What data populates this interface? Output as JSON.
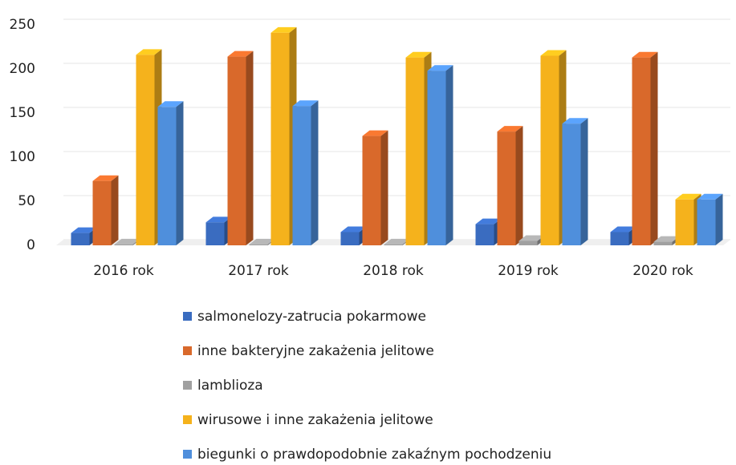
{
  "chart_data": {
    "type": "bar3d",
    "categories": [
      "2016 rok",
      "2017 rok",
      "2018 rok",
      "2019 rok",
      "2020 rok"
    ],
    "series": [
      {
        "name": "salmonelozy-zatrucia pokarmowe",
        "color": "#3a6cc0",
        "values": [
          14,
          26,
          15,
          24,
          15
        ]
      },
      {
        "name": "inne bakteryjne zakażenia jelitowe",
        "color": "#d9692b",
        "values": [
          73,
          214,
          124,
          129,
          213
        ]
      },
      {
        "name": "lamblioza",
        "color": "#a0a0a0",
        "values": [
          1,
          1,
          1,
          5,
          4
        ]
      },
      {
        "name": "wirusowe i inne zakażenia jelitowe",
        "color": "#f5b21c",
        "values": [
          216,
          241,
          213,
          215,
          52
        ]
      },
      {
        "name": "biegunki o prawdopodobnie zakaźnym pochodzeniu",
        "color": "#4f8fdc",
        "values": [
          157,
          158,
          198,
          138,
          52
        ]
      }
    ],
    "ylim": [
      0,
      250
    ],
    "yticks": [
      0,
      50,
      100,
      150,
      200,
      250
    ],
    "grid": true
  }
}
